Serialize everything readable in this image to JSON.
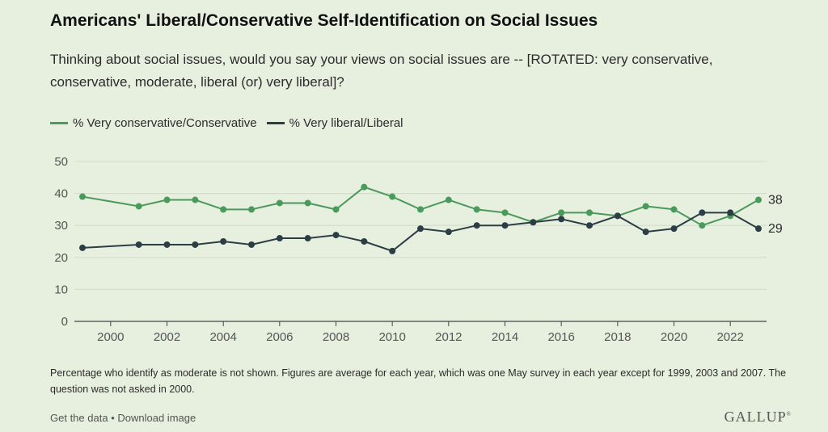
{
  "title": "Americans' Liberal/Conservative Self-Identification on Social Issues",
  "subtitle": "Thinking about social issues, would you say your views on social issues are -- [ROTATED: very conservative, conservative, moderate, liberal (or) very liberal]?",
  "footnote": "Percentage who identify as moderate is not shown. Figures are average for each year, which was one May survey in each year except for 1999, 2003 and 2007. The question was not asked in 2000.",
  "links": {
    "get_data": "Get the data",
    "separator": "•",
    "download": "Download image"
  },
  "brand": "GALLUP",
  "colors": {
    "conservative": "#4a9a5c",
    "liberal": "#2c3e45",
    "grid": "#cfdcc8",
    "axis": "#444444"
  },
  "chart_data": {
    "type": "line",
    "title": "",
    "xlabel": "",
    "ylabel": "",
    "xlim": [
      1999,
      2023
    ],
    "ylim": [
      0,
      50
    ],
    "yticks": [
      0,
      10,
      20,
      30,
      40,
      50
    ],
    "xticks": [
      2000,
      2002,
      2004,
      2006,
      2008,
      2010,
      2012,
      2014,
      2016,
      2018,
      2020,
      2022
    ],
    "grid": "horizontal",
    "legend": "top-left",
    "series": [
      {
        "name": "% Very conservative/Conservative",
        "color": "#4a9a5c",
        "end_label": "38",
        "x": [
          1999,
          2001,
          2002,
          2003,
          2004,
          2005,
          2006,
          2007,
          2008,
          2009,
          2010,
          2011,
          2012,
          2013,
          2014,
          2015,
          2016,
          2017,
          2018,
          2019,
          2020,
          2021,
          2022,
          2023
        ],
        "y": [
          39,
          36,
          38,
          38,
          35,
          35,
          37,
          37,
          35,
          42,
          39,
          35,
          38,
          35,
          34,
          31,
          34,
          34,
          33,
          36,
          35,
          30,
          33,
          38
        ]
      },
      {
        "name": "% Very liberal/Liberal",
        "color": "#2c3e45",
        "end_label": "29",
        "x": [
          1999,
          2001,
          2002,
          2003,
          2004,
          2005,
          2006,
          2007,
          2008,
          2009,
          2010,
          2011,
          2012,
          2013,
          2014,
          2015,
          2016,
          2017,
          2018,
          2019,
          2020,
          2021,
          2022,
          2023
        ],
        "y": [
          23,
          24,
          24,
          24,
          25,
          24,
          26,
          26,
          27,
          25,
          22,
          29,
          28,
          30,
          30,
          31,
          32,
          30,
          33,
          28,
          29,
          34,
          34,
          29
        ]
      }
    ]
  }
}
